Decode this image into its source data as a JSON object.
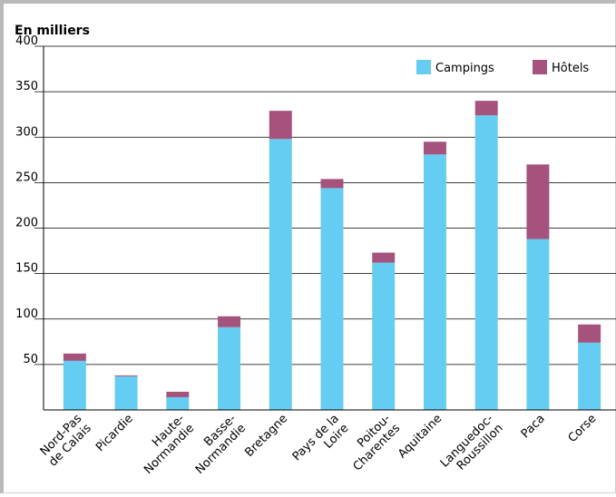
{
  "chart_data": {
    "type": "bar",
    "stacked": true,
    "unit_label": "En milliers",
    "ylim": [
      0,
      400
    ],
    "yticks": [
      50,
      100,
      150,
      200,
      250,
      300,
      350,
      400
    ],
    "grid": true,
    "legend_position": "top-right",
    "categories": [
      [
        "Nord-Pas",
        "de Calais"
      ],
      [
        "Picardie"
      ],
      [
        "Haute-",
        "Normandie"
      ],
      [
        "Basse-",
        "Normandie"
      ],
      [
        "Bretagne"
      ],
      [
        "Pays de la",
        "Loire"
      ],
      [
        "Poitou-",
        "Charentes"
      ],
      [
        "Aquitaine"
      ],
      [
        "Languedoc-",
        "Roussillon"
      ],
      [
        "Paca"
      ],
      [
        "Corse"
      ]
    ],
    "series": [
      {
        "name": "Campings",
        "color": "#66cdf2",
        "values": [
          54,
          37,
          14,
          91,
          298,
          244,
          162,
          281,
          324,
          188,
          74
        ]
      },
      {
        "name": "Hôtels",
        "color": "#a5527c",
        "values": [
          8,
          1,
          6,
          12,
          31,
          10,
          11,
          14,
          16,
          82,
          20
        ]
      }
    ]
  }
}
